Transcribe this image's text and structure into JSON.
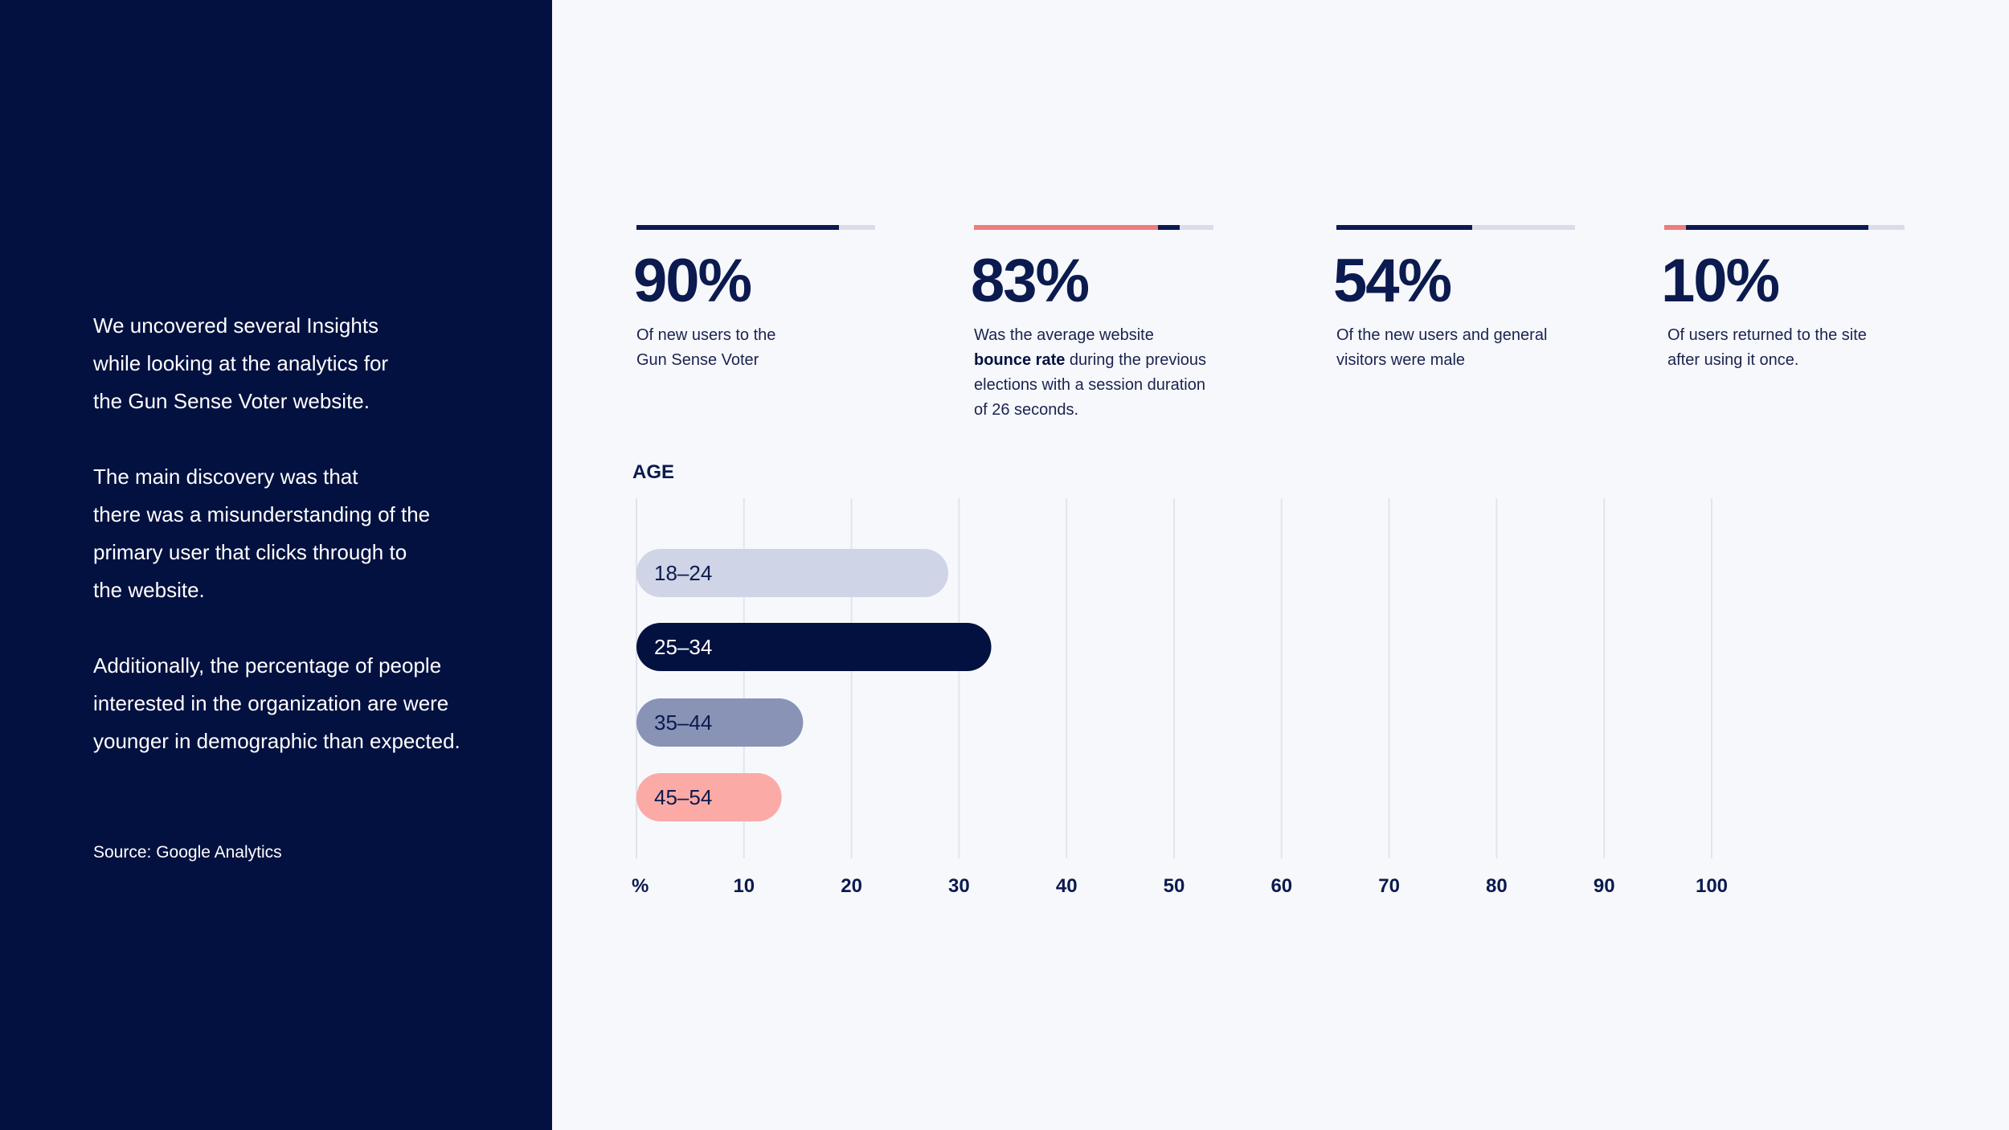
{
  "intro": {
    "paragraphs": [
      "We uncovered several Insights\nwhile looking at the analytics for\nthe Gun Sense Voter website.",
      "The main discovery was that\nthere was a misunderstanding of the\nprimary user that clicks through to\nthe website.",
      "Additionally, the percentage of people\ninterested in the organization are were\nyounger in demographic than expected."
    ],
    "source": "Source: Google Analytics"
  },
  "stats": [
    {
      "value": "90%",
      "desc_before": "Of new users to the\nGun Sense Voter",
      "desc_bold": "",
      "desc_after": "",
      "bar_segments": [
        {
          "color": "#0b1a4f",
          "fraction": 0.85
        }
      ]
    },
    {
      "value": "83%",
      "desc_before": "Was the average website\n",
      "desc_bold": "bounce rate",
      "desc_after": " during the previous\nelections with a session duration\nof 26 seconds.",
      "bar_segments": [
        {
          "color": "#f07b7b",
          "fraction": 0.77
        },
        {
          "color": "#0b1a4f",
          "fraction": 0.09
        }
      ]
    },
    {
      "value": "54%",
      "desc_before": "Of the new users and general\nvisitors were male",
      "desc_bold": "",
      "desc_after": "",
      "bar_segments": [
        {
          "color": "#0b1a4f",
          "fraction": 0.57
        }
      ]
    },
    {
      "value": "10%",
      "desc_before": "Of users returned to the site\nafter using it once.",
      "desc_bold": "",
      "desc_after": "",
      "bar_segments": [
        {
          "color": "#f07b7b",
          "fraction": 0.09
        },
        {
          "color": "#0b1a4f",
          "fraction": 0.76
        }
      ]
    }
  ],
  "chart_data": {
    "type": "bar",
    "orientation": "horizontal",
    "title": "AGE",
    "x_axis_unit_label": "%",
    "x_ticks": [
      10,
      20,
      30,
      40,
      50,
      60,
      70,
      80,
      90,
      100
    ],
    "xlim": [
      0,
      100
    ],
    "grid": true,
    "categories": [
      "18–24",
      "25–34",
      "35–44",
      "45–54"
    ],
    "values": [
      29,
      33,
      15.5,
      13.5
    ],
    "colors": [
      "#cfd4e6",
      "#021140",
      "#8893b6",
      "#fbaaa5"
    ],
    "label_colors": [
      "#0b1a4f",
      "#ffffff",
      "#0b1a4f",
      "#0b1a4f"
    ]
  }
}
